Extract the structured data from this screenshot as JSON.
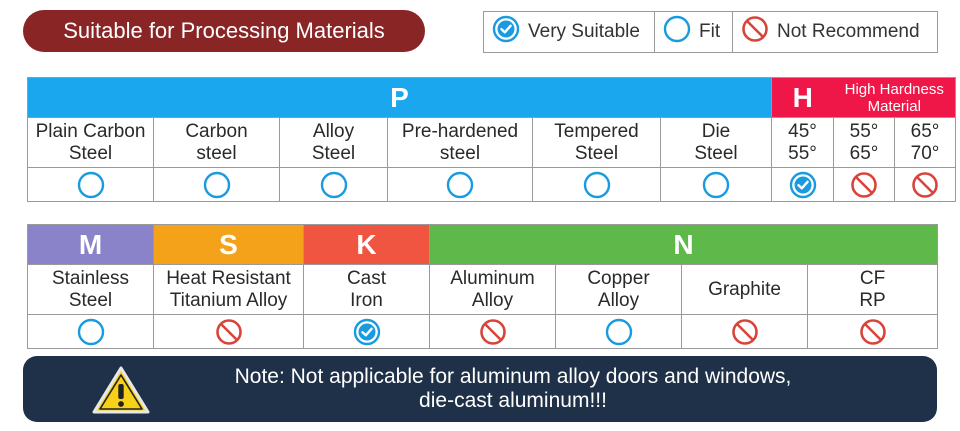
{
  "title": "Suitable for Processing Materials",
  "legend": {
    "very_suitable": "Very Suitable",
    "fit": "Fit",
    "not_recommend": "Not Recommend"
  },
  "colors": {
    "title_bg": "#8a2525",
    "P": "#1aa7ee",
    "H": "#ee1748",
    "M": "#8a83c9",
    "S": "#f5a21b",
    "K": "#f05542",
    "N": "#5fb94a",
    "note_bg": "#1e3148",
    "ok_blue": "#1a9be0",
    "no_red": "#d9443a"
  },
  "table1": {
    "groups": [
      {
        "letter": "P",
        "subtitle": ""
      },
      {
        "letter": "H",
        "subtitle": "High Hardness Material"
      }
    ],
    "columns": [
      {
        "line1": "Plain Carbon",
        "line2": "Steel",
        "rating": "fit"
      },
      {
        "line1": "Carbon",
        "line2": "steel",
        "rating": "fit"
      },
      {
        "line1": "Alloy",
        "line2": "Steel",
        "rating": "fit"
      },
      {
        "line1": "Pre-hardened",
        "line2": "steel",
        "rating": "fit"
      },
      {
        "line1": "Tempered",
        "line2": "Steel",
        "rating": "fit"
      },
      {
        "line1": "Die",
        "line2": "Steel",
        "rating": "fit"
      },
      {
        "line1": "45°",
        "line2": "55°",
        "rating": "very_suitable"
      },
      {
        "line1": "55°",
        "line2": "65°",
        "rating": "not_recommend"
      },
      {
        "line1": "65°",
        "line2": "70°",
        "rating": "not_recommend"
      }
    ]
  },
  "table2": {
    "groups": [
      {
        "letter": "M"
      },
      {
        "letter": "S"
      },
      {
        "letter": "K"
      },
      {
        "letter": "N"
      }
    ],
    "columns": [
      {
        "line1": "Stainless",
        "line2": "Steel",
        "rating": "fit"
      },
      {
        "line1": "Heat Resistant",
        "line2": "Titanium Alloy",
        "rating": "not_recommend"
      },
      {
        "line1": "Cast",
        "line2": "Iron",
        "rating": "very_suitable"
      },
      {
        "line1": "Aluminum",
        "line2": "Alloy",
        "rating": "not_recommend"
      },
      {
        "line1": "Copper",
        "line2": "Alloy",
        "rating": "fit"
      },
      {
        "line1": "Graphite",
        "line2": "",
        "rating": "not_recommend"
      },
      {
        "line1": "CF",
        "line2": "RP",
        "rating": "not_recommend"
      }
    ]
  },
  "note": {
    "line1": "Note: Not applicable for aluminum alloy doors and windows,",
    "line2": "die-cast aluminum!!!",
    "icon": "warning-icon"
  }
}
